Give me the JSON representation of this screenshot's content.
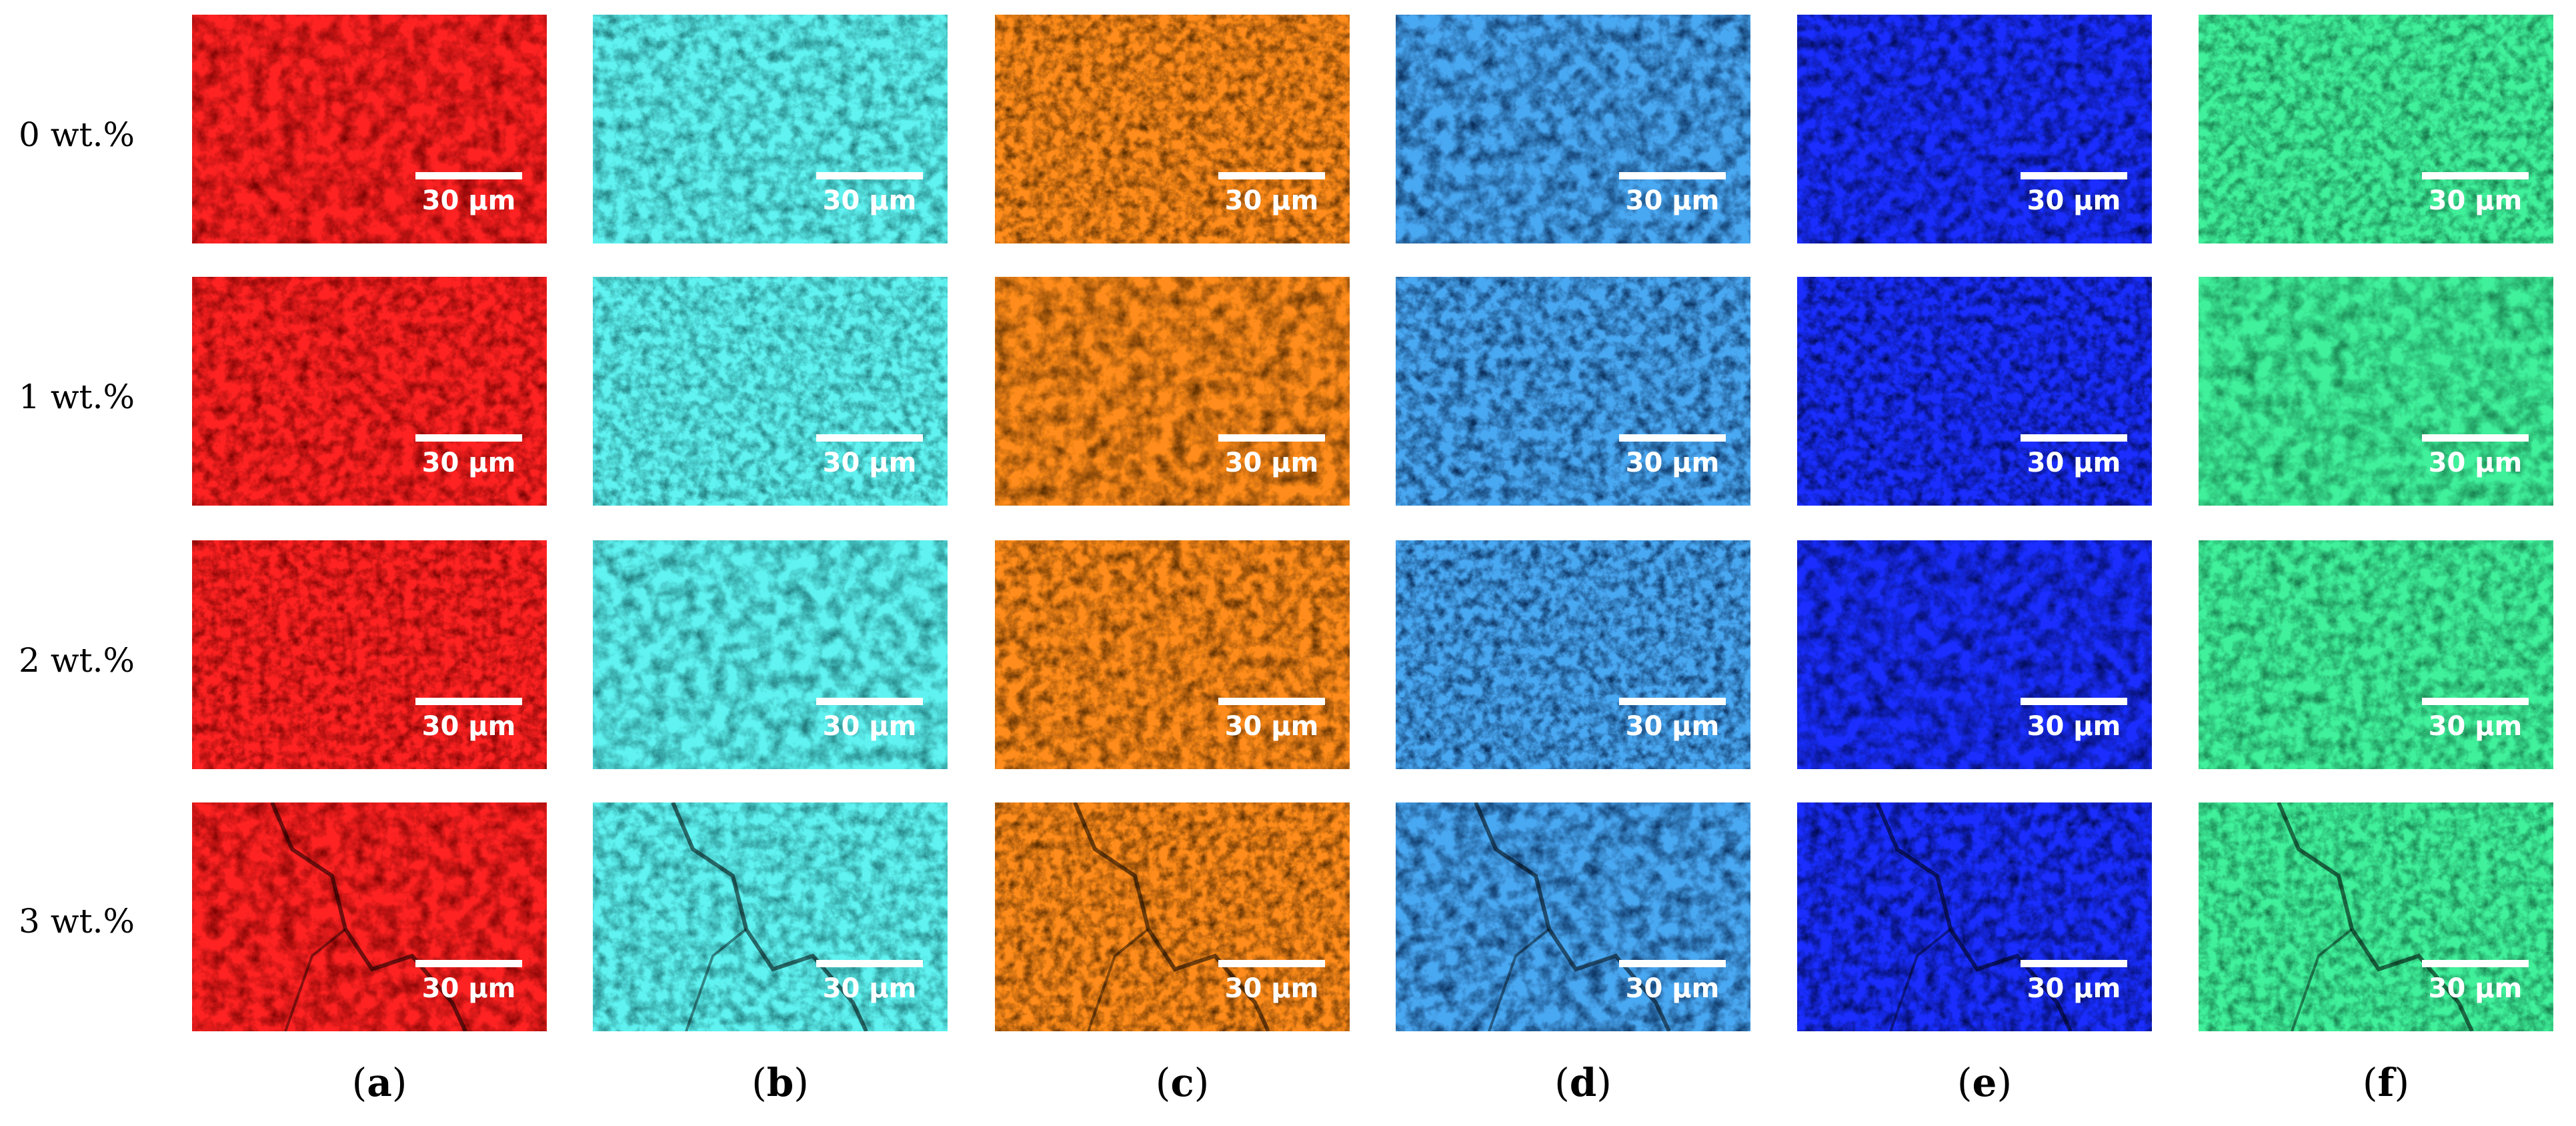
{
  "figure": {
    "row_labels": [
      "0 wt.%",
      "1 wt.%",
      "2 wt.%",
      "3 wt.%"
    ],
    "scale_bar_label": "30 µm",
    "columns": [
      {
        "letter": "a",
        "icon": "element-map-red",
        "palette": {
          "dark": "#260000",
          "mid": "#a30808",
          "bright": "#ff2222"
        }
      },
      {
        "letter": "b",
        "icon": "element-map-cyan",
        "palette": {
          "dark": "#0a2c2c",
          "mid": "#2fa6a8",
          "bright": "#5ef2f0"
        }
      },
      {
        "letter": "c",
        "icon": "element-map-orange",
        "palette": {
          "dark": "#1e0e00",
          "mid": "#7a3e04",
          "bright": "#ff8c1a"
        }
      },
      {
        "letter": "d",
        "icon": "element-map-light-blue",
        "palette": {
          "dark": "#020a1c",
          "mid": "#0f3f7a",
          "bright": "#4aa8f2"
        }
      },
      {
        "letter": "e",
        "icon": "element-map-blue",
        "palette": {
          "dark": "#000018",
          "mid": "#06106e",
          "bright": "#1a2eff"
        }
      },
      {
        "letter": "f",
        "icon": "element-map-green",
        "palette": {
          "dark": "#0a3b22",
          "mid": "#1f9d62",
          "bright": "#3ff09a"
        }
      }
    ]
  }
}
